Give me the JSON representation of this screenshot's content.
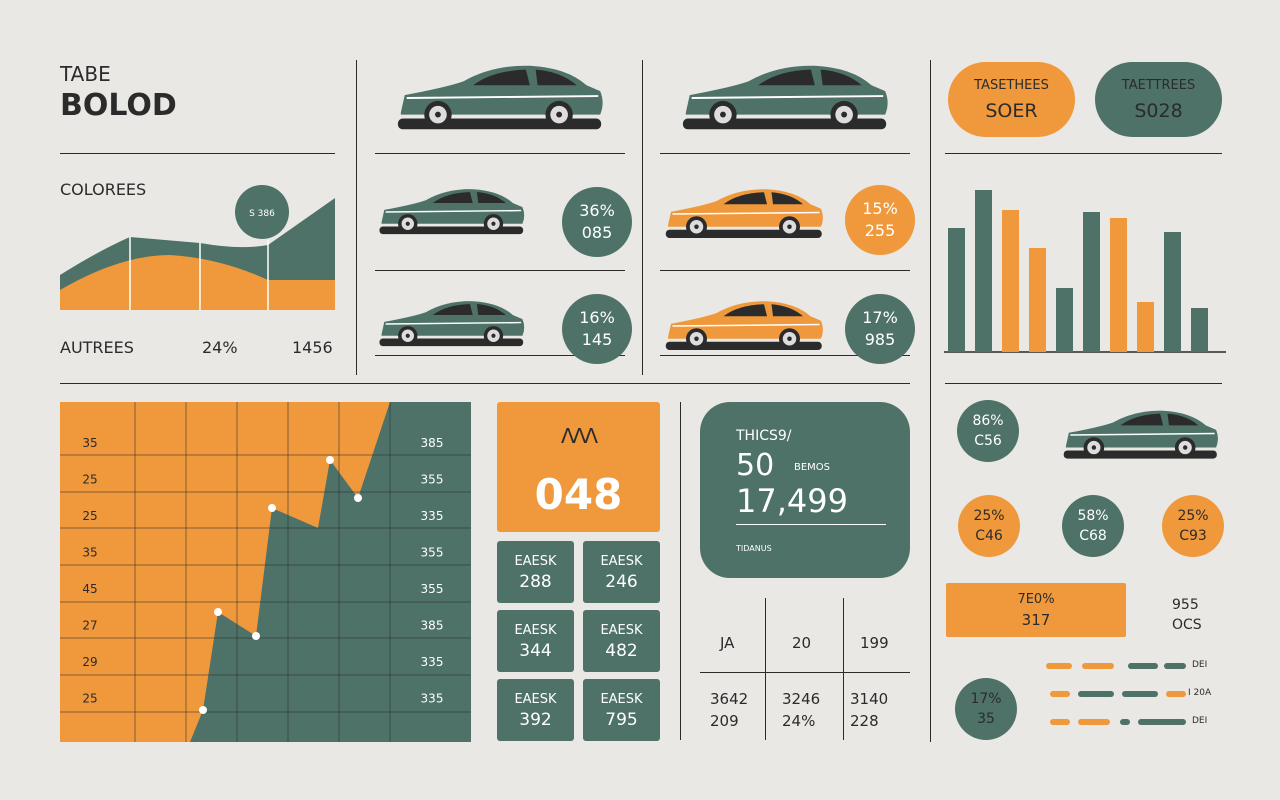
{
  "summary": {
    "label": "TABE",
    "title": "BOLOD",
    "subtitle": "COLOREES",
    "bubble": "S 386",
    "footer": [
      "AUTREES",
      "24%",
      "1456"
    ]
  },
  "car_stats": [
    {
      "top": "36%",
      "bottom": "085"
    },
    {
      "top": "16%",
      "bottom": "145"
    },
    {
      "top": "15%",
      "bottom": "255"
    },
    {
      "top": "17%",
      "bottom": "985"
    }
  ],
  "pills": [
    {
      "top": "TASETHEES",
      "bottom": "SOER"
    },
    {
      "top": "TAETTREES",
      "bottom": "S028"
    }
  ],
  "bar_chart": {
    "type": "bar",
    "values": [
      124,
      162,
      142,
      104,
      64,
      140,
      134,
      50,
      120,
      44
    ],
    "colors": [
      "#4e7268",
      "#4e7268",
      "#f0993c",
      "#f0993c",
      "#4e7268",
      "#4e7268",
      "#f0993c",
      "#f0993c",
      "#4e7268",
      "#4e7268"
    ],
    "ylim": [
      0,
      170
    ]
  },
  "grid_chart": {
    "left_labels": [
      "35",
      "25",
      "25",
      "35",
      "45",
      "27",
      "29",
      "25"
    ],
    "right_labels": [
      "385",
      "355",
      "335",
      "355",
      "355",
      "385",
      "335",
      "335"
    ]
  },
  "highlight": {
    "icon": "ΛΛΛ",
    "value": "048"
  },
  "tiles": [
    {
      "label": "EAESK",
      "value": "288"
    },
    {
      "label": "EAESK",
      "value": "246"
    },
    {
      "label": "EAESK",
      "value": "344"
    },
    {
      "label": "EAESK",
      "value": "482"
    },
    {
      "label": "EAESK",
      "value": "392"
    },
    {
      "label": "EAESK",
      "value": "795"
    }
  ],
  "summary_card": {
    "title": "THICS9/",
    "big": "50",
    "note": "BEMOS",
    "value": "17,499",
    "caption": "TIDANUS"
  },
  "table": {
    "header": [
      "JA",
      "20",
      "199"
    ],
    "rows": [
      [
        "3642",
        "3246",
        "3140"
      ],
      [
        "209",
        "24%",
        "228"
      ]
    ]
  },
  "right_stats": {
    "main": {
      "top": "86%",
      "bottom": "C56"
    },
    "circles": [
      {
        "top": "25%",
        "bottom": "C46"
      },
      {
        "top": "58%",
        "bottom": "C68"
      },
      {
        "top": "25%",
        "bottom": "C93"
      }
    ],
    "bar": {
      "top": "7E0%",
      "bottom": "317"
    },
    "side": {
      "top": "955",
      "bottom": "OCS"
    },
    "small": {
      "top": "17%",
      "bottom": "35"
    },
    "legend": [
      "DEI",
      "I 20A",
      "DEI"
    ]
  }
}
